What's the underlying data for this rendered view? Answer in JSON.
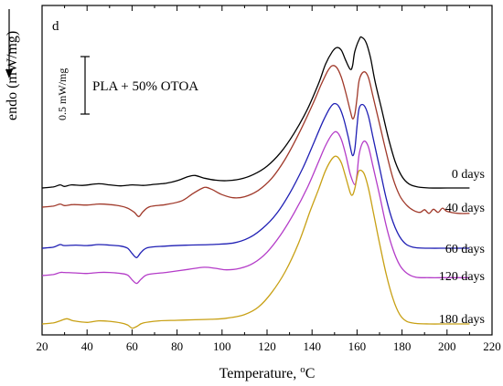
{
  "chart_data": {
    "type": "line",
    "panel_label": "d",
    "annotation": "PLA + 50% OTOA",
    "scale_bar_label": "0.5 mW/mg",
    "xlabel": "Temperature, ",
    "xlabel_unit": "oC",
    "ylabel": "endo (mW/mg)",
    "xlim": [
      20,
      220
    ],
    "xticks": [
      20,
      40,
      60,
      80,
      100,
      120,
      140,
      160,
      180,
      200,
      220
    ],
    "xtick_labels": [
      "20",
      "40",
      "60",
      "80",
      "100",
      "120",
      "140",
      "160",
      "180",
      "200",
      "220"
    ],
    "y_units": "relative offset (arbitrary)",
    "grid": false,
    "series": [
      {
        "name": "0 days",
        "color": "#000000",
        "points": [
          [
            20,
            0
          ],
          [
            25,
            0.02
          ],
          [
            28,
            0.06
          ],
          [
            30,
            0.03
          ],
          [
            33,
            0.06
          ],
          [
            38,
            0.05
          ],
          [
            45,
            0.08
          ],
          [
            50,
            0.06
          ],
          [
            55,
            0.04
          ],
          [
            60,
            0.06
          ],
          [
            65,
            0.05
          ],
          [
            70,
            0.07
          ],
          [
            75,
            0.09
          ],
          [
            80,
            0.14
          ],
          [
            85,
            0.22
          ],
          [
            88,
            0.24
          ],
          [
            92,
            0.19
          ],
          [
            97,
            0.15
          ],
          [
            102,
            0.14
          ],
          [
            108,
            0.17
          ],
          [
            114,
            0.26
          ],
          [
            120,
            0.42
          ],
          [
            126,
            0.68
          ],
          [
            132,
            1.05
          ],
          [
            138,
            1.52
          ],
          [
            143,
            2.02
          ],
          [
            146,
            2.38
          ],
          [
            149,
            2.62
          ],
          [
            151,
            2.7
          ],
          [
            153,
            2.65
          ],
          [
            155,
            2.45
          ],
          [
            157,
            2.28
          ],
          [
            158,
            2.35
          ],
          [
            159,
            2.62
          ],
          [
            161,
            2.86
          ],
          [
            162,
            2.9
          ],
          [
            164,
            2.8
          ],
          [
            166,
            2.5
          ],
          [
            168,
            2.05
          ],
          [
            171,
            1.5
          ],
          [
            174,
            0.95
          ],
          [
            177,
            0.5
          ],
          [
            180,
            0.22
          ],
          [
            183,
            0.08
          ],
          [
            187,
            0.02
          ],
          [
            192,
            0
          ],
          [
            200,
            0
          ],
          [
            210,
            0
          ]
        ]
      },
      {
        "name": "40 days",
        "color": "#a0392a",
        "points": [
          [
            20,
            0
          ],
          [
            25,
            0.02
          ],
          [
            28,
            0.06
          ],
          [
            30,
            0.03
          ],
          [
            34,
            0.05
          ],
          [
            40,
            0.04
          ],
          [
            45,
            0.06
          ],
          [
            50,
            0.05
          ],
          [
            55,
            0.02
          ],
          [
            58,
            -0.02
          ],
          [
            61,
            -0.1
          ],
          [
            63,
            -0.18
          ],
          [
            65,
            -0.08
          ],
          [
            68,
            0.01
          ],
          [
            75,
            0.05
          ],
          [
            82,
            0.12
          ],
          [
            87,
            0.26
          ],
          [
            91,
            0.36
          ],
          [
            93,
            0.38
          ],
          [
            96,
            0.33
          ],
          [
            100,
            0.24
          ],
          [
            105,
            0.18
          ],
          [
            110,
            0.2
          ],
          [
            116,
            0.32
          ],
          [
            122,
            0.55
          ],
          [
            128,
            0.92
          ],
          [
            134,
            1.4
          ],
          [
            140,
            1.95
          ],
          [
            144,
            2.35
          ],
          [
            147,
            2.62
          ],
          [
            149,
            2.72
          ],
          [
            151,
            2.68
          ],
          [
            153,
            2.5
          ],
          [
            155,
            2.2
          ],
          [
            157,
            1.85
          ],
          [
            158,
            1.7
          ],
          [
            159,
            1.78
          ],
          [
            160,
            2.1
          ],
          [
            161,
            2.45
          ],
          [
            163,
            2.6
          ],
          [
            165,
            2.5
          ],
          [
            167,
            2.15
          ],
          [
            170,
            1.6
          ],
          [
            173,
            1.05
          ],
          [
            176,
            0.55
          ],
          [
            179,
            0.22
          ],
          [
            182,
            0.04
          ],
          [
            185,
            -0.06
          ],
          [
            188,
            -0.1
          ],
          [
            190,
            -0.05
          ],
          [
            192,
            -0.12
          ],
          [
            194,
            -0.04
          ],
          [
            196,
            -0.1
          ],
          [
            198,
            -0.02
          ],
          [
            200,
            -0.08
          ],
          [
            205,
            -0.12
          ],
          [
            210,
            -0.12
          ]
        ]
      },
      {
        "name": "60 days",
        "color": "#1f1fb4",
        "points": [
          [
            20,
            0
          ],
          [
            25,
            0.02
          ],
          [
            28,
            0.07
          ],
          [
            30,
            0.05
          ],
          [
            35,
            0.06
          ],
          [
            40,
            0.05
          ],
          [
            45,
            0.07
          ],
          [
            50,
            0.06
          ],
          [
            55,
            0.04
          ],
          [
            58,
            0
          ],
          [
            60,
            -0.1
          ],
          [
            62,
            -0.18
          ],
          [
            64,
            -0.08
          ],
          [
            67,
            0.01
          ],
          [
            75,
            0.04
          ],
          [
            85,
            0.06
          ],
          [
            95,
            0.07
          ],
          [
            105,
            0.1
          ],
          [
            112,
            0.2
          ],
          [
            118,
            0.38
          ],
          [
            124,
            0.65
          ],
          [
            130,
            1.05
          ],
          [
            136,
            1.55
          ],
          [
            141,
            2.05
          ],
          [
            145,
            2.45
          ],
          [
            148,
            2.7
          ],
          [
            150,
            2.78
          ],
          [
            152,
            2.72
          ],
          [
            154,
            2.5
          ],
          [
            156,
            2.15
          ],
          [
            157,
            1.95
          ],
          [
            158,
            1.78
          ],
          [
            159,
            1.9
          ],
          [
            160,
            2.35
          ],
          [
            161,
            2.7
          ],
          [
            163,
            2.75
          ],
          [
            165,
            2.55
          ],
          [
            167,
            2.15
          ],
          [
            170,
            1.55
          ],
          [
            173,
            0.95
          ],
          [
            176,
            0.5
          ],
          [
            179,
            0.22
          ],
          [
            182,
            0.07
          ],
          [
            186,
            0.01
          ],
          [
            192,
            0
          ],
          [
            200,
            0
          ],
          [
            210,
            0
          ]
        ]
      },
      {
        "name": "120 days",
        "color": "#b43cc8",
        "points": [
          [
            20,
            0
          ],
          [
            25,
            0.02
          ],
          [
            28,
            0.06
          ],
          [
            30,
            0.06
          ],
          [
            35,
            0.05
          ],
          [
            40,
            0.04
          ],
          [
            45,
            0.06
          ],
          [
            50,
            0.06
          ],
          [
            55,
            0.04
          ],
          [
            58,
            0.01
          ],
          [
            60,
            -0.08
          ],
          [
            62,
            -0.15
          ],
          [
            64,
            -0.07
          ],
          [
            67,
            0.02
          ],
          [
            75,
            0.06
          ],
          [
            85,
            0.12
          ],
          [
            92,
            0.16
          ],
          [
            97,
            0.14
          ],
          [
            102,
            0.11
          ],
          [
            108,
            0.14
          ],
          [
            114,
            0.24
          ],
          [
            120,
            0.45
          ],
          [
            126,
            0.78
          ],
          [
            132,
            1.2
          ],
          [
            138,
            1.7
          ],
          [
            143,
            2.2
          ],
          [
            146,
            2.5
          ],
          [
            149,
            2.72
          ],
          [
            151,
            2.76
          ],
          [
            153,
            2.62
          ],
          [
            155,
            2.32
          ],
          [
            157,
            1.95
          ],
          [
            159,
            1.75
          ],
          [
            160,
            1.95
          ],
          [
            161,
            2.35
          ],
          [
            163,
            2.58
          ],
          [
            165,
            2.48
          ],
          [
            167,
            2.12
          ],
          [
            170,
            1.55
          ],
          [
            173,
            0.95
          ],
          [
            176,
            0.5
          ],
          [
            179,
            0.2
          ],
          [
            182,
            0.05
          ],
          [
            186,
            -0.03
          ],
          [
            192,
            -0.04
          ],
          [
            200,
            -0.04
          ],
          [
            210,
            -0.04
          ]
        ]
      },
      {
        "name": "180 days",
        "color": "#c8a014",
        "points": [
          [
            20,
            0
          ],
          [
            25,
            0.02
          ],
          [
            28,
            0.06
          ],
          [
            31,
            0.1
          ],
          [
            34,
            0.06
          ],
          [
            40,
            0.03
          ],
          [
            45,
            0.06
          ],
          [
            50,
            0.05
          ],
          [
            55,
            0.02
          ],
          [
            58,
            -0.02
          ],
          [
            60,
            -0.08
          ],
          [
            62,
            -0.05
          ],
          [
            65,
            0.02
          ],
          [
            72,
            0.06
          ],
          [
            80,
            0.07
          ],
          [
            88,
            0.08
          ],
          [
            95,
            0.09
          ],
          [
            102,
            0.11
          ],
          [
            110,
            0.18
          ],
          [
            116,
            0.32
          ],
          [
            122,
            0.6
          ],
          [
            128,
            1.0
          ],
          [
            134,
            1.55
          ],
          [
            139,
            2.15
          ],
          [
            143,
            2.6
          ],
          [
            146,
            2.95
          ],
          [
            149,
            3.18
          ],
          [
            151,
            3.22
          ],
          [
            153,
            3.1
          ],
          [
            155,
            2.82
          ],
          [
            157,
            2.52
          ],
          [
            158,
            2.48
          ],
          [
            159,
            2.6
          ],
          [
            160,
            2.82
          ],
          [
            161,
            2.95
          ],
          [
            163,
            2.9
          ],
          [
            165,
            2.62
          ],
          [
            167,
            2.2
          ],
          [
            170,
            1.55
          ],
          [
            173,
            0.95
          ],
          [
            176,
            0.48
          ],
          [
            179,
            0.18
          ],
          [
            182,
            0.05
          ],
          [
            186,
            0.01
          ],
          [
            192,
            0
          ],
          [
            200,
            0
          ],
          [
            210,
            0
          ]
        ]
      }
    ]
  }
}
